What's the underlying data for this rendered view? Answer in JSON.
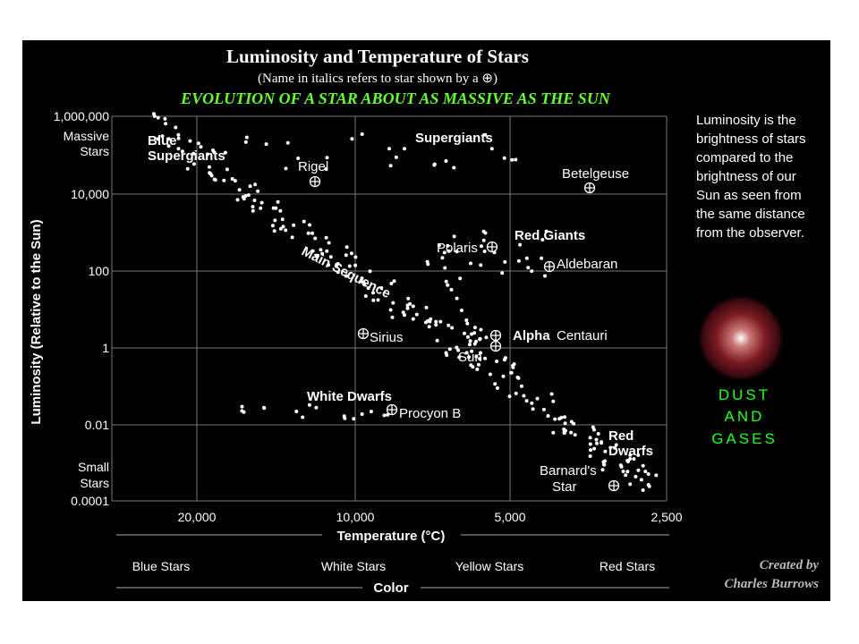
{
  "header": {
    "title": "Luminosity and Temperature of Stars",
    "subtitle": "(Name in italics refers to star shown by a ⊕)",
    "heading": "EVOLUTION OF A STAR ABOUT AS MASSIVE AS THE SUN"
  },
  "y_axis": {
    "label": "Luminosity (Relative to the Sun)",
    "ticks": [
      "1,000,000",
      "10,000",
      "100",
      "1",
      "0.01",
      "0.0001"
    ],
    "massive": [
      "Massive",
      "Stars"
    ],
    "small": [
      "Small",
      "Stars"
    ]
  },
  "x_axis": {
    "label": "Temperature (°C)",
    "ticks": [
      "20,000",
      "10,000",
      "5,000",
      "2,500"
    ],
    "colors": [
      "Blue Stars",
      "White Stars",
      "Yellow Stars",
      "Red Stars"
    ],
    "color_label": "Color"
  },
  "regions": {
    "blue_supergiants": [
      "Blue",
      "Supergiants"
    ],
    "supergiants": "Supergiants",
    "red_giants": "Red Giants",
    "main_sequence": "Main Sequence",
    "white_dwarfs": "White Dwarfs",
    "red_dwarfs": [
      "Red",
      "Dwarfs"
    ]
  },
  "stars": {
    "rigel": "Rigel",
    "betelgeuse": "Betelgeuse",
    "polaris": "Polaris",
    "aldebaran": "Aldebaran",
    "sirius": "Sirius",
    "alpha_centauri": [
      "Alpha",
      "Centauri"
    ],
    "sun": "Sun",
    "procyon_b": "Procyon B",
    "barnards": [
      "Barnard's",
      "Star"
    ]
  },
  "note": [
    "Luminosity is the",
    "brightness of stars",
    "compared to the",
    "brightness of our",
    "Sun as seen from",
    "the same distance",
    "from the observer."
  ],
  "dust": [
    "DUST",
    "AND",
    "GASES"
  ],
  "credit": [
    "Created by",
    "Charles Burrows"
  ]
}
